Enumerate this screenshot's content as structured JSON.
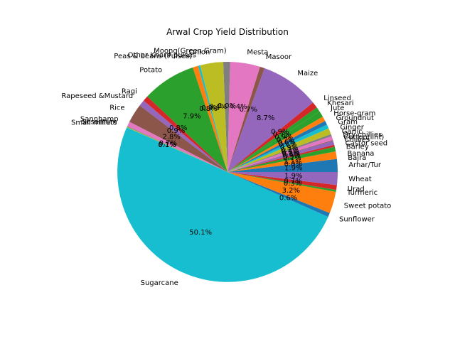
{
  "chart_data": {
    "type": "pie",
    "title": "Arwal Crop Yield Distribution",
    "start_angle_deg": 0,
    "direction": "counterclockwise",
    "slices": [
      {
        "label": "Arhar/Tur",
        "value": 1.9,
        "color": "#1f77b4"
      },
      {
        "label": "Bajra",
        "value": 0.0,
        "color": "#ff7f0e"
      },
      {
        "label": "Banana",
        "value": 1.1,
        "color": "#ff7f0e"
      },
      {
        "label": "Barley",
        "value": 0.7,
        "color": "#2ca02c"
      },
      {
        "label": "Castor seed",
        "value": 0.3,
        "color": "#d62728"
      },
      {
        "label": "Chillies",
        "value": 0.6,
        "color": "#9467bd"
      },
      {
        "label": "Cotton(lint)",
        "value": 0.1,
        "color": "#8c564b"
      },
      {
        "label": "Dry chillies",
        "value": 0.6,
        "color": "#e377c2"
      },
      {
        "label": "Garlic",
        "value": 0.3,
        "color": "#7f7f7f"
      },
      {
        "label": "Ginger",
        "value": 0.9,
        "color": "#bcbd22"
      },
      {
        "label": "Gram",
        "value": 0.6,
        "color": "#17becf"
      },
      {
        "label": "Groundnut",
        "value": 0.6,
        "color": "#1f77b4"
      },
      {
        "label": "Horse-gram",
        "value": 0.7,
        "color": "#ff7f0e"
      },
      {
        "label": "Jute",
        "value": 0.9,
        "color": "#2ca02c"
      },
      {
        "label": "Khesari",
        "value": 0.7,
        "color": "#2ca02c"
      },
      {
        "label": "Linseed",
        "value": 0.9,
        "color": "#d62728"
      },
      {
        "label": "Maize",
        "value": 8.7,
        "color": "#9467bd"
      },
      {
        "label": "Masoor",
        "value": 0.7,
        "color": "#8c564b"
      },
      {
        "label": "Mesta",
        "value": 4.4,
        "color": "#e377c2"
      },
      {
        "label": "Moong(Green Gram)",
        "value": 1.0,
        "color": "#7f7f7f"
      },
      {
        "label": "Onion",
        "value": 3.4,
        "color": "#bcbd22"
      },
      {
        "label": "Other Kharif pulses",
        "value": 0.3,
        "color": "#17becf"
      },
      {
        "label": "Peas & beans (Pulses)",
        "value": 0.8,
        "color": "#ff7f0e"
      },
      {
        "label": "Potato",
        "value": 7.9,
        "color": "#2ca02c"
      },
      {
        "label": "Ragi",
        "value": 0.8,
        "color": "#d62728"
      },
      {
        "label": "Rapeseed &Mustard",
        "value": 0.9,
        "color": "#9467bd"
      },
      {
        "label": "Rice",
        "value": 2.8,
        "color": "#8c564b"
      },
      {
        "label": "Sannhamp",
        "value": 0.7,
        "color": "#e377c2"
      },
      {
        "label": "Sesamum",
        "value": 0.1,
        "color": "#7f7f7f"
      },
      {
        "label": "Small millets",
        "value": 0.1,
        "color": "#bcbd22"
      },
      {
        "label": "Sugarcane",
        "value": 50.1,
        "color": "#17becf"
      },
      {
        "label": "Sunflower",
        "value": 0.6,
        "color": "#1f77b4"
      },
      {
        "label": "Sweet potato",
        "value": 3.2,
        "color": "#ff7f0e"
      },
      {
        "label": "Turmeric",
        "value": 0.3,
        "color": "#2ca02c"
      },
      {
        "label": "Urad",
        "value": 0.7,
        "color": "#d62728"
      },
      {
        "label": "Wheat",
        "value": 1.9,
        "color": "#9467bd"
      }
    ]
  }
}
